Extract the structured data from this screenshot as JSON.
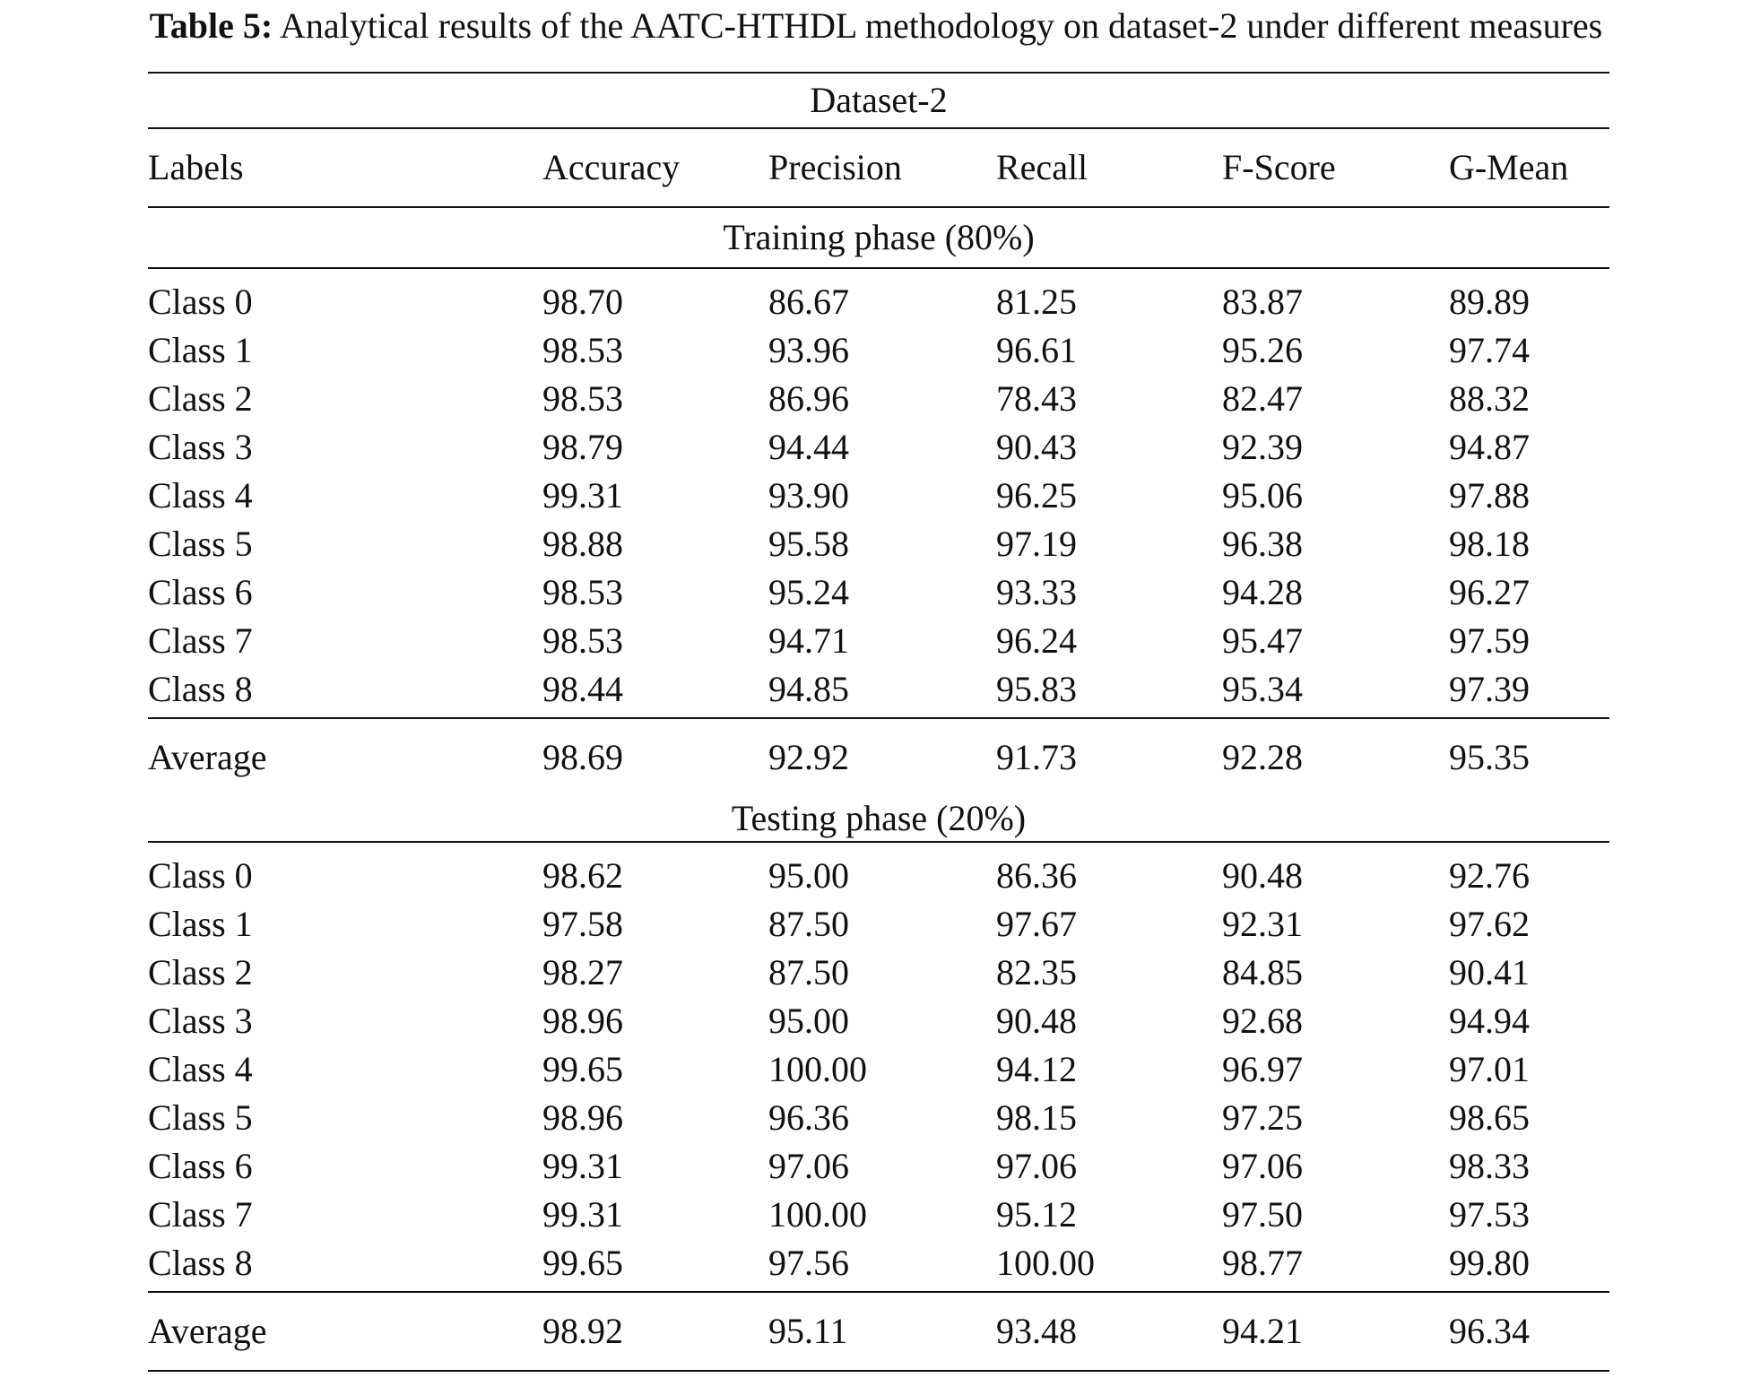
{
  "caption": {
    "label": "Table 5:",
    "text": "Analytical results of the AATC-HTHDL methodology on dataset-2 under different measures"
  },
  "table": {
    "group_header": "Dataset-2",
    "columns": [
      "Labels",
      "Accuracy",
      "Precision",
      "Recall",
      "F-Score",
      "G-Mean"
    ],
    "training": {
      "title": "Training phase (80%)",
      "rows": [
        [
          "Class 0",
          "98.70",
          "86.67",
          "81.25",
          "83.87",
          "89.89"
        ],
        [
          "Class 1",
          "98.53",
          "93.96",
          "96.61",
          "95.26",
          "97.74"
        ],
        [
          "Class 2",
          "98.53",
          "86.96",
          "78.43",
          "82.47",
          "88.32"
        ],
        [
          "Class 3",
          "98.79",
          "94.44",
          "90.43",
          "92.39",
          "94.87"
        ],
        [
          "Class 4",
          "99.31",
          "93.90",
          "96.25",
          "95.06",
          "97.88"
        ],
        [
          "Class 5",
          "98.88",
          "95.58",
          "97.19",
          "96.38",
          "98.18"
        ],
        [
          "Class 6",
          "98.53",
          "95.24",
          "93.33",
          "94.28",
          "96.27"
        ],
        [
          "Class 7",
          "98.53",
          "94.71",
          "96.24",
          "95.47",
          "97.59"
        ],
        [
          "Class 8",
          "98.44",
          "94.85",
          "95.83",
          "95.34",
          "97.39"
        ]
      ],
      "average": [
        "Average",
        "98.69",
        "92.92",
        "91.73",
        "92.28",
        "95.35"
      ]
    },
    "testing": {
      "title": "Testing phase (20%)",
      "rows": [
        [
          "Class 0",
          "98.62",
          "95.00",
          "86.36",
          "90.48",
          "92.76"
        ],
        [
          "Class 1",
          "97.58",
          "87.50",
          "97.67",
          "92.31",
          "97.62"
        ],
        [
          "Class 2",
          "98.27",
          "87.50",
          "82.35",
          "84.85",
          "90.41"
        ],
        [
          "Class 3",
          "98.96",
          "95.00",
          "90.48",
          "92.68",
          "94.94"
        ],
        [
          "Class 4",
          "99.65",
          "100.00",
          "94.12",
          "96.97",
          "97.01"
        ],
        [
          "Class 5",
          "98.96",
          "96.36",
          "98.15",
          "97.25",
          "98.65"
        ],
        [
          "Class 6",
          "99.31",
          "97.06",
          "97.06",
          "97.06",
          "98.33"
        ],
        [
          "Class 7",
          "99.31",
          "100.00",
          "95.12",
          "97.50",
          "97.53"
        ],
        [
          "Class 8",
          "99.65",
          "97.56",
          "100.00",
          "98.77",
          "99.80"
        ]
      ],
      "average": [
        "Average",
        "98.92",
        "95.11",
        "93.48",
        "94.21",
        "96.34"
      ]
    }
  }
}
